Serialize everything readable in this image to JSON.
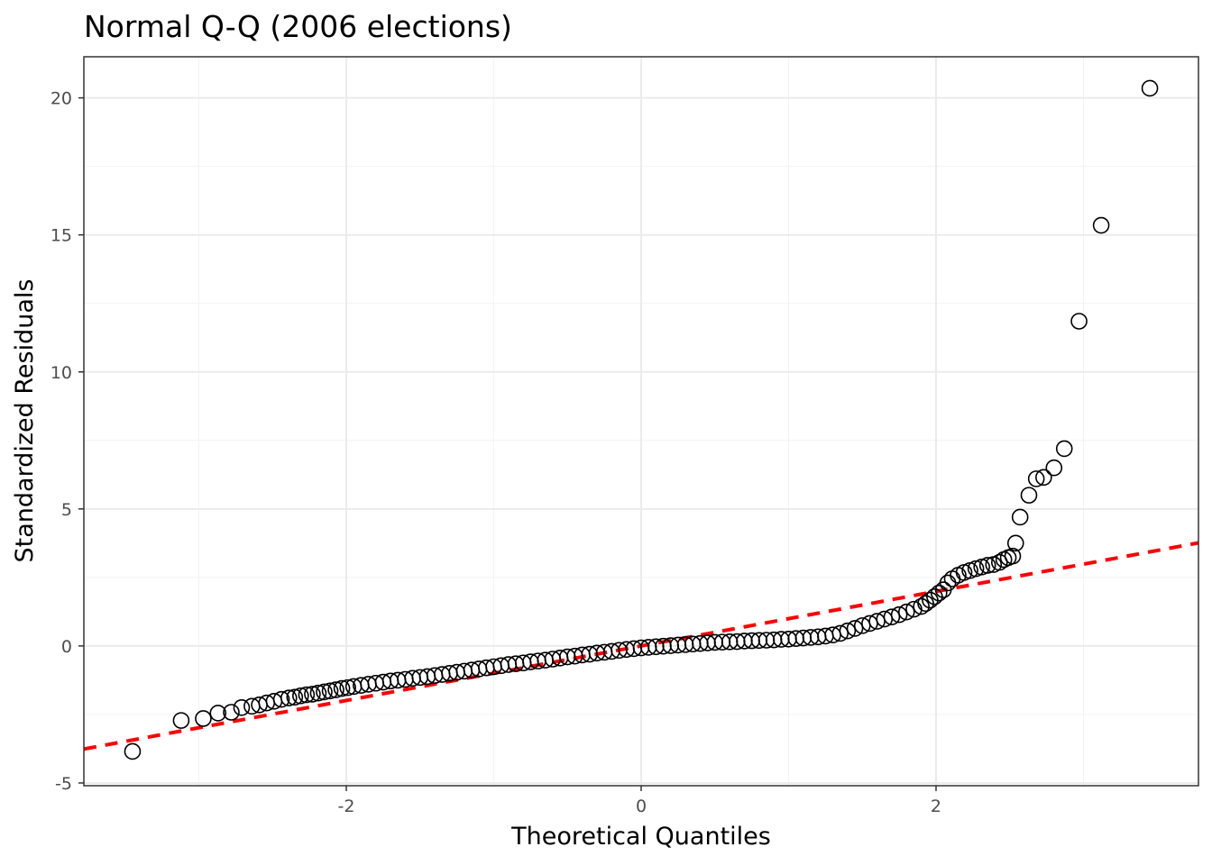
{
  "chart_data": {
    "type": "scatter",
    "title": "Normal Q-Q (2006 elections)",
    "xlabel": "Theoretical Quantiles",
    "ylabel": "Standardized Residuals",
    "xlim": [
      -3.78,
      3.78
    ],
    "ylim": [
      -5.1,
      21.5
    ],
    "x_ticks": [
      -2,
      0,
      2
    ],
    "x_tick_labels": [
      "-2",
      "0",
      "2"
    ],
    "y_ticks": [
      -5,
      0,
      5,
      10,
      15,
      20
    ],
    "y_tick_labels": [
      "-5",
      "0",
      "5",
      "10",
      "15",
      "20"
    ],
    "grid": true,
    "legend": "none",
    "reference_line": {
      "style": "dashed",
      "color": "#ff0000",
      "intercept": 0.0,
      "slope": 0.995
    },
    "series": [
      {
        "marker": "open-circle",
        "color": "#000000",
        "points": [
          [
            -3.45,
            -3.85
          ],
          [
            -3.12,
            -2.72
          ],
          [
            -2.97,
            -2.65
          ],
          [
            -2.87,
            -2.45
          ],
          [
            -2.78,
            -2.42
          ],
          [
            -2.71,
            -2.25
          ],
          [
            -2.64,
            -2.2
          ],
          [
            -2.59,
            -2.15
          ],
          [
            -2.54,
            -2.08
          ],
          [
            -2.49,
            -2.02
          ],
          [
            -2.44,
            -1.95
          ],
          [
            -2.39,
            -1.9
          ],
          [
            -2.35,
            -1.87
          ],
          [
            -2.31,
            -1.82
          ],
          [
            -2.27,
            -1.78
          ],
          [
            -2.23,
            -1.76
          ],
          [
            -2.19,
            -1.72
          ],
          [
            -2.15,
            -1.68
          ],
          [
            -2.11,
            -1.64
          ],
          [
            -2.07,
            -1.6
          ],
          [
            -2.03,
            -1.55
          ],
          [
            -1.99,
            -1.52
          ],
          [
            -1.95,
            -1.48
          ],
          [
            -1.9,
            -1.44
          ],
          [
            -1.85,
            -1.4
          ],
          [
            -1.8,
            -1.36
          ],
          [
            -1.75,
            -1.32
          ],
          [
            -1.7,
            -1.28
          ],
          [
            -1.65,
            -1.25
          ],
          [
            -1.6,
            -1.22
          ],
          [
            -1.55,
            -1.18
          ],
          [
            -1.5,
            -1.15
          ],
          [
            -1.45,
            -1.12
          ],
          [
            -1.4,
            -1.08
          ],
          [
            -1.35,
            -1.04
          ],
          [
            -1.3,
            -1.0
          ],
          [
            -1.25,
            -0.96
          ],
          [
            -1.2,
            -0.92
          ],
          [
            -1.15,
            -0.88
          ],
          [
            -1.1,
            -0.84
          ],
          [
            -1.05,
            -0.8
          ],
          [
            -1.0,
            -0.76
          ],
          [
            -0.95,
            -0.72
          ],
          [
            -0.9,
            -0.68
          ],
          [
            -0.85,
            -0.65
          ],
          [
            -0.8,
            -0.62
          ],
          [
            -0.75,
            -0.58
          ],
          [
            -0.7,
            -0.55
          ],
          [
            -0.65,
            -0.52
          ],
          [
            -0.6,
            -0.48
          ],
          [
            -0.55,
            -0.44
          ],
          [
            -0.5,
            -0.4
          ],
          [
            -0.45,
            -0.37
          ],
          [
            -0.4,
            -0.33
          ],
          [
            -0.35,
            -0.3
          ],
          [
            -0.3,
            -0.26
          ],
          [
            -0.25,
            -0.23
          ],
          [
            -0.2,
            -0.2
          ],
          [
            -0.15,
            -0.16
          ],
          [
            -0.1,
            -0.13
          ],
          [
            -0.05,
            -0.1
          ],
          [
            0.0,
            -0.07
          ],
          [
            0.05,
            -0.05
          ],
          [
            0.1,
            -0.03
          ],
          [
            0.15,
            -0.01
          ],
          [
            0.2,
            0.01
          ],
          [
            0.25,
            0.03
          ],
          [
            0.3,
            0.05
          ],
          [
            0.35,
            0.07
          ],
          [
            0.4,
            0.09
          ],
          [
            0.45,
            0.11
          ],
          [
            0.5,
            0.13
          ],
          [
            0.55,
            0.14
          ],
          [
            0.6,
            0.15
          ],
          [
            0.65,
            0.16
          ],
          [
            0.7,
            0.18
          ],
          [
            0.75,
            0.19
          ],
          [
            0.8,
            0.2
          ],
          [
            0.85,
            0.21
          ],
          [
            0.9,
            0.22
          ],
          [
            0.95,
            0.24
          ],
          [
            1.0,
            0.25
          ],
          [
            1.05,
            0.27
          ],
          [
            1.1,
            0.29
          ],
          [
            1.15,
            0.31
          ],
          [
            1.2,
            0.33
          ],
          [
            1.25,
            0.36
          ],
          [
            1.3,
            0.4
          ],
          [
            1.35,
            0.46
          ],
          [
            1.4,
            0.55
          ],
          [
            1.45,
            0.64
          ],
          [
            1.5,
            0.74
          ],
          [
            1.55,
            0.82
          ],
          [
            1.6,
            0.9
          ],
          [
            1.65,
            0.98
          ],
          [
            1.7,
            1.06
          ],
          [
            1.75,
            1.14
          ],
          [
            1.8,
            1.24
          ],
          [
            1.85,
            1.34
          ],
          [
            1.9,
            1.44
          ],
          [
            1.93,
            1.55
          ],
          [
            1.96,
            1.67
          ],
          [
            1.99,
            1.8
          ],
          [
            2.02,
            1.93
          ],
          [
            2.05,
            2.05
          ],
          [
            2.08,
            2.3
          ],
          [
            2.11,
            2.45
          ],
          [
            2.15,
            2.58
          ],
          [
            2.19,
            2.68
          ],
          [
            2.23,
            2.75
          ],
          [
            2.27,
            2.82
          ],
          [
            2.31,
            2.88
          ],
          [
            2.35,
            2.94
          ],
          [
            2.39,
            2.97
          ],
          [
            2.43,
            3.05
          ],
          [
            2.46,
            3.15
          ],
          [
            2.49,
            3.22
          ],
          [
            2.52,
            3.28
          ],
          [
            2.54,
            3.75
          ],
          [
            2.57,
            4.7
          ],
          [
            2.63,
            5.5
          ],
          [
            2.68,
            6.1
          ],
          [
            2.73,
            6.15
          ],
          [
            2.8,
            6.5
          ],
          [
            2.87,
            7.2
          ],
          [
            2.97,
            11.85
          ],
          [
            3.12,
            15.35
          ],
          [
            3.45,
            20.35
          ]
        ]
      }
    ]
  }
}
